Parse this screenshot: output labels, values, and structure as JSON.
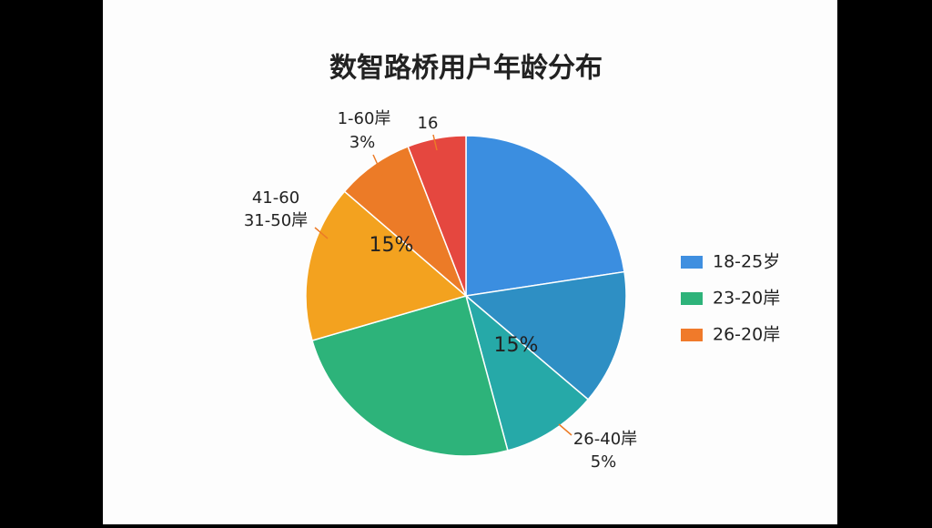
{
  "chart_data": {
    "type": "pie",
    "title": "数智路桥用户年龄分布",
    "values": [
      22.6,
      13.6,
      9.6,
      24.7,
      15.8,
      7.8,
      5.9
    ],
    "colors": [
      "#3b8ee0",
      "#2e8fc4",
      "#26a9a8",
      "#2db37a",
      "#f3a21f",
      "#ec7b27",
      "#e5473f"
    ],
    "legend": [
      {
        "name": "18-25岁",
        "color": "#3f8fe0"
      },
      {
        "name": "23-20岸",
        "color": "#2eb37a"
      },
      {
        "name": "26-20岸",
        "color": "#f07a2a"
      }
    ],
    "annotations": [
      "1-60岸",
      "3%",
      "16",
      "41-60",
      "31-50岸",
      "15%",
      "15%",
      "26-40岸",
      "5%"
    ]
  }
}
